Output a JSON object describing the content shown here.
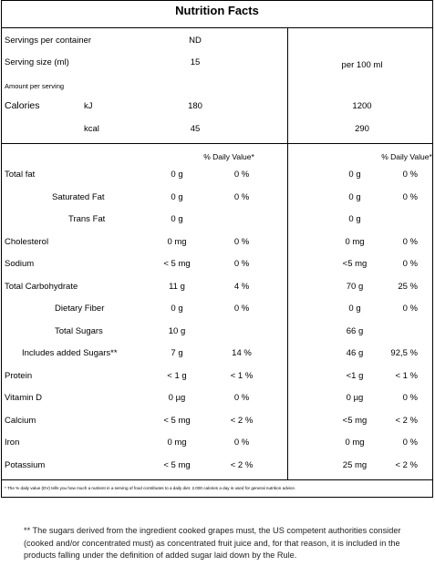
{
  "title": "Nutrition Facts",
  "servings_per_container": {
    "label": "Servings per container",
    "value": "ND"
  },
  "serving_size": {
    "label": "Serving size (ml)",
    "value": "15",
    "per100_label": "per 100 ml"
  },
  "amount_per_serving": "Amount per serving",
  "calories": {
    "label": "Calories",
    "kj": {
      "unit": "kJ",
      "serving": "180",
      "per100": "1200"
    },
    "kcal": {
      "unit": "kcal",
      "serving": "45",
      "per100": "290"
    }
  },
  "dv_header": "% Daily Value*",
  "rows": [
    {
      "name": "Total fat",
      "amt": "0 g",
      "dv": "0 %",
      "amt100": "0 g",
      "dv100": "0 %"
    },
    {
      "name": "Saturated Fat",
      "amt": "0 g",
      "dv": "0 %",
      "amt100": "0 g",
      "dv100": "0 %"
    },
    {
      "name": "Trans Fat",
      "amt": "0 g",
      "dv": "",
      "amt100": "0 g",
      "dv100": ""
    },
    {
      "name": "Cholesterol",
      "amt": "0 mg",
      "dv": "0 %",
      "amt100": "0 mg",
      "dv100": "0 %"
    },
    {
      "name": "Sodium",
      "amt": "< 5 mg",
      "dv": "0 %",
      "amt100": "<5 mg",
      "dv100": "0 %"
    },
    {
      "name": "Total Carbohydrate",
      "amt": "11 g",
      "dv": "4 %",
      "amt100": "70 g",
      "dv100": "25 %"
    },
    {
      "name": "Dietary Fiber",
      "amt": "0 g",
      "dv": "0 %",
      "amt100": "0 g",
      "dv100": "0 %"
    },
    {
      "name": "Total Sugars",
      "amt": "10 g",
      "dv": "",
      "amt100": "66 g",
      "dv100": ""
    },
    {
      "name": "Includes added Sugars**",
      "amt": "7 g",
      "dv": "14 %",
      "amt100": "46 g",
      "dv100": "92,5 %"
    },
    {
      "name": "Protein",
      "amt": "< 1 g",
      "dv": "< 1 %",
      "amt100": "<1 g",
      "dv100": "< 1 %"
    },
    {
      "name": "Vitamin D",
      "amt": "0 µg",
      "dv": "0 %",
      "amt100": "0 µg",
      "dv100": "0 %"
    },
    {
      "name": "Calcium",
      "amt": "< 5 mg",
      "dv": "< 2 %",
      "amt100": "<5 mg",
      "dv100": "< 2 %"
    },
    {
      "name": "Iron",
      "amt": "0 mg",
      "dv": "0 %",
      "amt100": "0 mg",
      "dv100": "0 %"
    },
    {
      "name": "Potassium",
      "amt": "< 5 mg",
      "dv": "< 2 %",
      "amt100": "25 mg",
      "dv100": "< 2 %"
    }
  ],
  "dv_footnote": "* The % daily value (DV) tells you how much a nutrient in a serving of food contributes to a daily diet. 2.000 calories a day is used for general nutrition advice.",
  "added_sugar_note": "** The sugars derived from the ingredient cooked grapes must, the US competent authorities consider (cooked and/or concentrated must) as concentrated fruit juice and, for that reason, it is included in the products falling under the definition of added sugar laid down by the Rule."
}
